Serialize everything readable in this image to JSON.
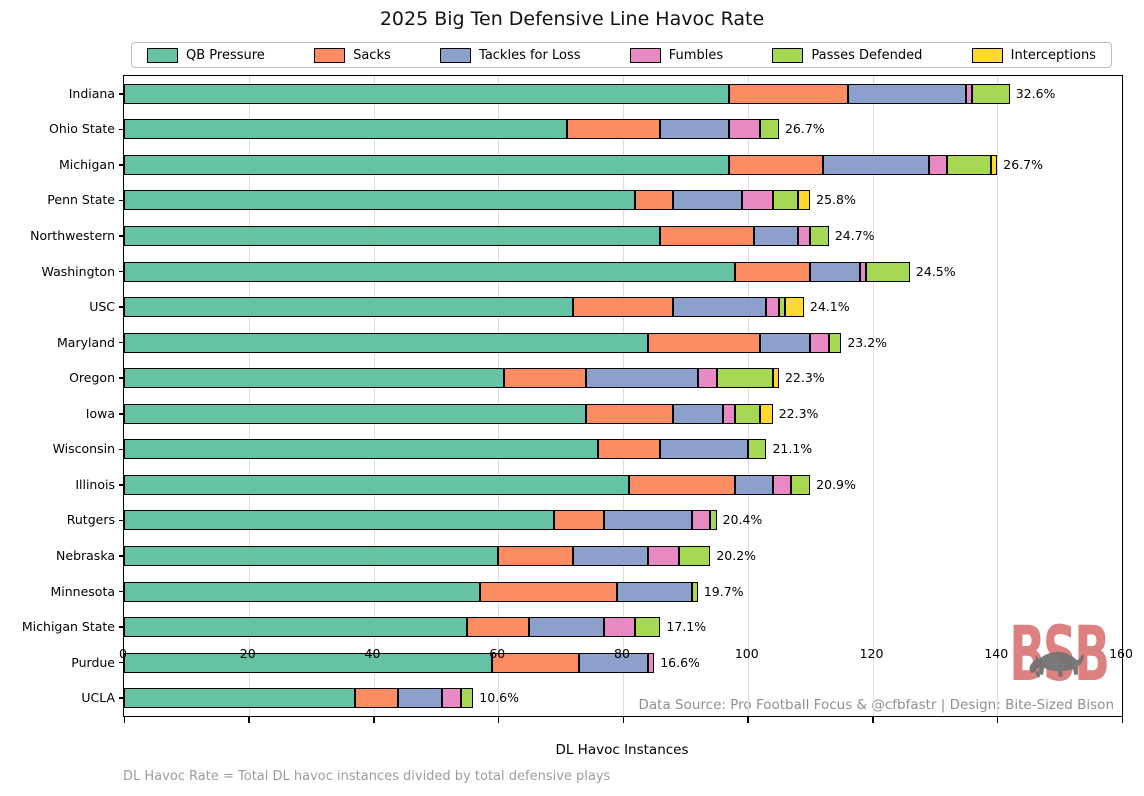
{
  "title": "2025 Big Ten Defensive Line Havoc Rate",
  "chart_data": {
    "type": "bar",
    "stacked": true,
    "orientation": "horizontal",
    "title": "2025 Big Ten Defensive Line Havoc Rate",
    "xlabel": "DL Havoc Instances",
    "ylabel": "",
    "xlim": [
      0,
      160
    ],
    "x_ticks": [
      0,
      20,
      40,
      60,
      80,
      100,
      120,
      140,
      160
    ],
    "grid": true,
    "legend_position": "top",
    "series": [
      {
        "name": "QB Pressure",
        "color": "#66c2a5"
      },
      {
        "name": "Sacks",
        "color": "#fc8d62"
      },
      {
        "name": "Tackles for Loss",
        "color": "#8da0cb"
      },
      {
        "name": "Fumbles",
        "color": "#e78ac3"
      },
      {
        "name": "Passes Defended",
        "color": "#a6d854"
      },
      {
        "name": "Interceptions",
        "color": "#ffd92f"
      }
    ],
    "teams": [
      {
        "name": "Indiana",
        "rate_label": "32.6%",
        "values": [
          97,
          19,
          19,
          1,
          6,
          0
        ]
      },
      {
        "name": "Ohio State",
        "rate_label": "26.7%",
        "values": [
          71,
          15,
          11,
          5,
          3,
          0
        ]
      },
      {
        "name": "Michigan",
        "rate_label": "26.7%",
        "values": [
          97,
          15,
          17,
          3,
          7,
          1
        ]
      },
      {
        "name": "Penn State",
        "rate_label": "25.8%",
        "values": [
          82,
          6,
          11,
          5,
          4,
          2
        ]
      },
      {
        "name": "Northwestern",
        "rate_label": "24.7%",
        "values": [
          86,
          15,
          7,
          2,
          3,
          0
        ]
      },
      {
        "name": "Washington",
        "rate_label": "24.5%",
        "values": [
          98,
          12,
          8,
          1,
          7,
          0
        ]
      },
      {
        "name": "USC",
        "rate_label": "24.1%",
        "values": [
          72,
          16,
          15,
          2,
          1,
          3
        ]
      },
      {
        "name": "Maryland",
        "rate_label": "23.2%",
        "values": [
          84,
          18,
          8,
          3,
          2,
          0
        ]
      },
      {
        "name": "Oregon",
        "rate_label": "22.3%",
        "values": [
          61,
          13,
          18,
          3,
          9,
          1
        ]
      },
      {
        "name": "Iowa",
        "rate_label": "22.3%",
        "values": [
          74,
          14,
          8,
          2,
          4,
          2
        ]
      },
      {
        "name": "Wisconsin",
        "rate_label": "21.1%",
        "values": [
          76,
          10,
          14,
          0,
          3,
          0
        ]
      },
      {
        "name": "Illinois",
        "rate_label": "20.9%",
        "values": [
          81,
          17,
          6,
          3,
          3,
          0
        ]
      },
      {
        "name": "Rutgers",
        "rate_label": "20.4%",
        "values": [
          69,
          8,
          14,
          3,
          1,
          0
        ]
      },
      {
        "name": "Nebraska",
        "rate_label": "20.2%",
        "values": [
          60,
          12,
          12,
          5,
          5,
          0
        ]
      },
      {
        "name": "Minnesota",
        "rate_label": "19.7%",
        "values": [
          57,
          22,
          12,
          0,
          1,
          0
        ]
      },
      {
        "name": "Michigan State",
        "rate_label": "17.1%",
        "values": [
          55,
          10,
          12,
          5,
          4,
          0
        ]
      },
      {
        "name": "Purdue",
        "rate_label": "16.6%",
        "values": [
          59,
          14,
          11,
          1,
          0,
          0
        ]
      },
      {
        "name": "UCLA",
        "rate_label": "10.6%",
        "values": [
          37,
          7,
          7,
          3,
          2,
          0
        ]
      }
    ],
    "grid_color": "#dcdcdc",
    "bar_edge_color": "#000000"
  },
  "footer": {
    "source": "Data Source: Pro Football Focus & @cfbfastr | Design: Bite-Sized Bison",
    "note": "DL Havoc Rate = Total DL havoc instances divided by total defensive plays"
  },
  "logo": {
    "text": "BSB",
    "color": "#dc8080",
    "bison_color": "#717171"
  }
}
